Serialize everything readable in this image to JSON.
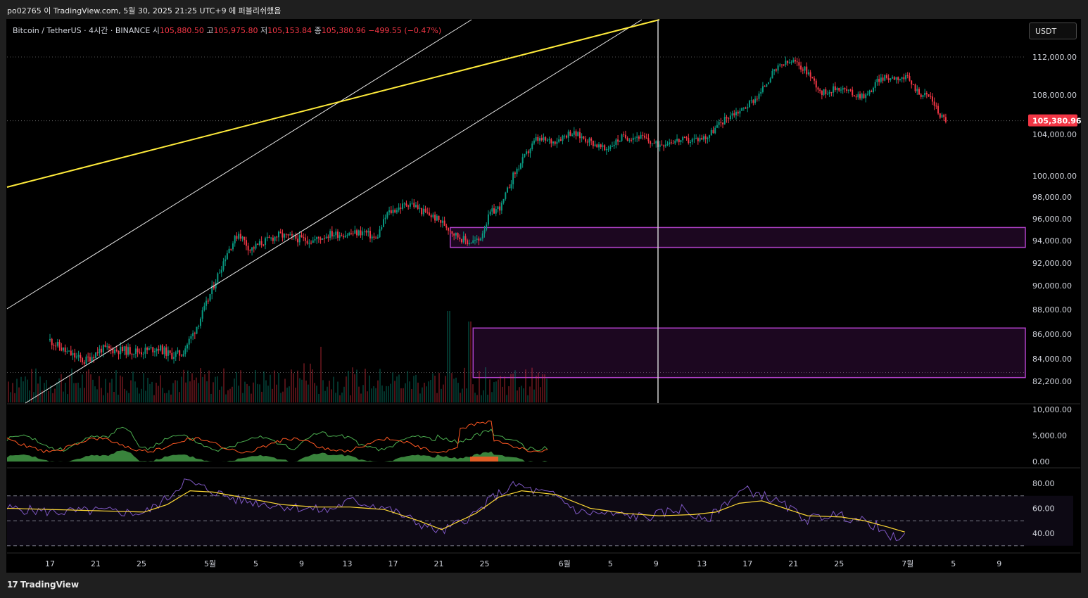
{
  "header": {
    "text": "po02765 이 TradingView.com, 5월 30, 2025 21:25 UTC+9 에 퍼블리쉬했음"
  },
  "legend": {
    "symbol": "Bitcoin / TetherUS · 4시간 · BINANCE",
    "open_label": "시",
    "open": "105,880.50",
    "high_label": "고",
    "high": "105,975.80",
    "low_label": "저",
    "low": "105,153.84",
    "close_label": "종",
    "close": "105,380.96",
    "change": "−499.55 (−0.47%)"
  },
  "currency_button": "USDT",
  "footer": {
    "logo": "TradingView"
  },
  "colors": {
    "up": "#089981",
    "down": "#f23645",
    "trendline": "#ffeb3b",
    "channel": "#ffffff",
    "zone": "#9c27b0",
    "rsi": "#7e57c2",
    "rsi_ma": "#fdd835",
    "osc_green": "#4caf50",
    "osc_red": "#ff5722"
  },
  "chart_data": [
    {
      "type": "candlestick",
      "symbol": "BTCUSDT",
      "interval": "4h",
      "price_axis_ticks": [
        112000,
        108000,
        104000,
        100000,
        98000,
        96000,
        94000,
        92000,
        90000,
        88000,
        86000,
        84000,
        82200
      ],
      "price_axis_labels": [
        "112,000.00",
        "108,000.00",
        "104,000.00",
        "100,000.00",
        "98,000.00",
        "96,000.00",
        "94,000.00",
        "92,000.00",
        "90,000.00",
        "88,000.00",
        "86,000.00",
        "84,000.00",
        "82,200.00"
      ],
      "last_price_label": "105,380.96",
      "x_axis_labels": [
        "17",
        "21",
        "25",
        "5월",
        "5",
        "9",
        "13",
        "17",
        "21",
        "25",
        "6월",
        "5",
        "9",
        "13",
        "17",
        "21",
        "25",
        "7월",
        "5",
        "9"
      ],
      "x_axis_label_day_offsets": [
        0,
        4,
        8,
        14,
        18,
        22,
        26,
        30,
        34,
        38,
        45,
        49,
        53,
        57,
        61,
        65,
        69,
        75,
        79,
        83
      ],
      "close_path": [
        [
          0,
          85500
        ],
        [
          1.5,
          84500
        ],
        [
          3,
          83800
        ],
        [
          4.5,
          84800
        ],
        [
          6,
          84700
        ],
        [
          8,
          84600
        ],
        [
          9.5,
          84900
        ],
        [
          10.5,
          84300
        ],
        [
          11.5,
          84400
        ],
        [
          12.5,
          86000
        ],
        [
          13.5,
          88000
        ],
        [
          14.5,
          90500
        ],
        [
          15.5,
          93000
        ],
        [
          16.5,
          94700
        ],
        [
          17.5,
          93200
        ],
        [
          18.5,
          93800
        ],
        [
          20,
          94500
        ],
        [
          21.5,
          94200
        ],
        [
          23,
          94000
        ],
        [
          24.5,
          94600
        ],
        [
          26,
          94600
        ],
        [
          27.5,
          94800
        ],
        [
          28.5,
          94100
        ],
        [
          29.5,
          96500
        ],
        [
          30.5,
          97000
        ],
        [
          31.5,
          97500
        ],
        [
          32.5,
          96700
        ],
        [
          33.5,
          96200
        ],
        [
          34.5,
          95500
        ],
        [
          35.5,
          94500
        ],
        [
          36.5,
          93900
        ],
        [
          37.5,
          94000
        ],
        [
          38.5,
          96500
        ],
        [
          39.5,
          97200
        ],
        [
          40.5,
          100000
        ],
        [
          41.5,
          101800
        ],
        [
          42.5,
          103500
        ],
        [
          44,
          103300
        ],
        [
          45.5,
          104200
        ],
        [
          47,
          103500
        ],
        [
          48.5,
          102500
        ],
        [
          50,
          103700
        ],
        [
          51.5,
          103800
        ],
        [
          53,
          103000
        ],
        [
          54.5,
          103400
        ],
        [
          56,
          103400
        ],
        [
          57.5,
          103800
        ],
        [
          58.5,
          105000
        ],
        [
          59.5,
          106000
        ],
        [
          60.5,
          106500
        ],
        [
          62,
          108000
        ],
        [
          63,
          110000
        ],
        [
          64,
          111200
        ],
        [
          65,
          111500
        ],
        [
          66.2,
          110500
        ],
        [
          67.5,
          108200
        ],
        [
          69,
          108800
        ],
        [
          70.5,
          108000
        ],
        [
          71.5,
          108000
        ],
        [
          72.5,
          109700
        ],
        [
          74,
          109900
        ],
        [
          75,
          109700
        ],
        [
          76,
          108200
        ],
        [
          77,
          107800
        ],
        [
          77.8,
          106000
        ],
        [
          78.5,
          105380
        ]
      ],
      "volume_note": "volume bars at bottom of price pane, peaks near day 65 and 67",
      "drawings": [
        {
          "kind": "trendline",
          "color": "yellow",
          "from": [
            0,
            98900
          ],
          "to": [
            95,
            116000
          ]
        },
        {
          "kind": "parallel_channel",
          "color": "white"
        },
        {
          "kind": "zone",
          "price_top": 95200,
          "price_bottom": 93400,
          "start_day": 35
        },
        {
          "kind": "zone",
          "price_top": 86500,
          "price_bottom": 82500,
          "start_day": 37
        },
        {
          "kind": "vertical_line",
          "day": 95
        }
      ]
    },
    {
      "type": "line",
      "name": "oscillator",
      "y_axis_labels": [
        "10,000.00",
        "5,000.00",
        "0.00"
      ],
      "ylim": [
        0,
        10000
      ]
    },
    {
      "type": "line",
      "name": "RSI",
      "y_axis_labels": [
        "80.00",
        "60.00",
        "40.00"
      ],
      "ylim": [
        27,
        85
      ],
      "bands": [
        70,
        50,
        30
      ],
      "rsi_path": [
        [
          0,
          60
        ],
        [
          4,
          57
        ],
        [
          8,
          58
        ],
        [
          12,
          56
        ],
        [
          14,
          68
        ],
        [
          15.5,
          82
        ],
        [
          17,
          77
        ],
        [
          20,
          67
        ],
        [
          23,
          63
        ],
        [
          26,
          60
        ],
        [
          28,
          58
        ],
        [
          30,
          66
        ],
        [
          33,
          61
        ],
        [
          36,
          48
        ],
        [
          38,
          41
        ],
        [
          41,
          56
        ],
        [
          42.5,
          69
        ],
        [
          44.5,
          79
        ],
        [
          46,
          74
        ],
        [
          48,
          70
        ],
        [
          50,
          57
        ],
        [
          53,
          55
        ],
        [
          56,
          53
        ],
        [
          59,
          60
        ],
        [
          61,
          49
        ],
        [
          63,
          66
        ],
        [
          64.5,
          75
        ],
        [
          66,
          71
        ],
        [
          68,
          62
        ],
        [
          70,
          51
        ],
        [
          72,
          55
        ],
        [
          74,
          52
        ],
        [
          76,
          46
        ],
        [
          77,
          36
        ],
        [
          78.5,
          38
        ]
      ],
      "ma_path": [
        [
          0,
          60
        ],
        [
          4,
          59
        ],
        [
          8,
          58
        ],
        [
          12,
          57
        ],
        [
          14,
          63
        ],
        [
          16,
          74
        ],
        [
          18,
          73
        ],
        [
          21,
          68
        ],
        [
          24,
          63
        ],
        [
          27,
          61
        ],
        [
          30,
          61
        ],
        [
          33,
          59
        ],
        [
          36,
          50
        ],
        [
          38,
          43
        ],
        [
          41,
          56
        ],
        [
          43,
          69
        ],
        [
          45,
          74
        ],
        [
          48,
          71
        ],
        [
          51,
          60
        ],
        [
          54,
          56
        ],
        [
          57,
          54
        ],
        [
          60,
          55
        ],
        [
          62,
          57
        ],
        [
          64,
          64
        ],
        [
          66,
          66
        ],
        [
          68,
          60
        ],
        [
          70,
          54
        ],
        [
          73,
          53
        ],
        [
          75,
          50
        ],
        [
          77,
          45
        ],
        [
          78.5,
          41
        ]
      ]
    }
  ]
}
